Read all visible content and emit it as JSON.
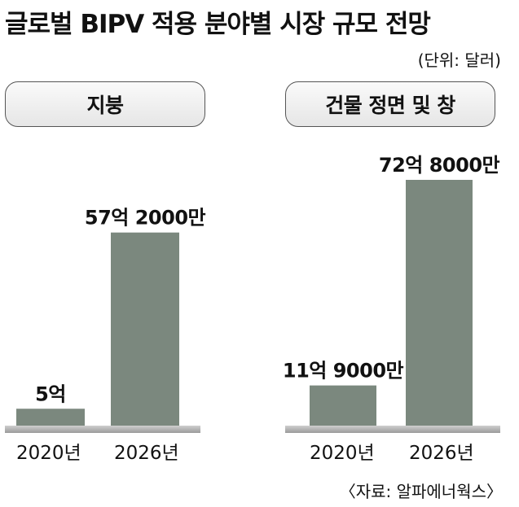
{
  "title": "글로벌 BIPV 적용 분야별 시장 규모 전망",
  "unit": "(단위: 달러)",
  "source": "〈자료: 알파에너웍스〉",
  "bar_color": "#7b887e",
  "chart_data": [
    {
      "type": "bar",
      "title": "지붕",
      "categories": [
        "2020년",
        "2026년"
      ],
      "values": [
        500000000,
        5720000000
      ],
      "data_labels": [
        "5억",
        "57억 2000만"
      ],
      "ylim": [
        0,
        7280000000
      ]
    },
    {
      "type": "bar",
      "title": "건물 정면 및 창",
      "categories": [
        "2020년",
        "2026년"
      ],
      "values": [
        1190000000,
        7280000000
      ],
      "data_labels": [
        "11억 9000만",
        "72억 8000만"
      ],
      "ylim": [
        0,
        7280000000
      ]
    }
  ]
}
